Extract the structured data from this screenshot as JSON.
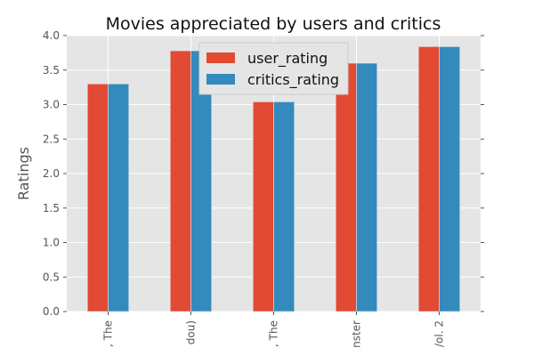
{
  "chart_data": {
    "type": "bar",
    "title": "Movies appreciated by users and critics",
    "xlabel": "",
    "ylabel": "Ratings",
    "categories": [
      ", The",
      "dou)",
      ", The",
      "nster",
      "/ol. 2"
    ],
    "series": [
      {
        "name": "user_rating",
        "color": "#e24a33",
        "values": [
          3.3,
          3.78,
          3.04,
          3.6,
          3.84
        ]
      },
      {
        "name": "critics_rating",
        "color": "#348abd",
        "values": [
          3.3,
          3.78,
          3.04,
          3.6,
          3.84
        ]
      }
    ],
    "ylim": [
      0,
      4.0
    ],
    "yticks": [
      "0.0",
      "0.5",
      "1.0",
      "1.5",
      "2.0",
      "2.5",
      "3.0",
      "3.5",
      "4.0"
    ],
    "grid": true,
    "legend_position": "top-center",
    "plot_background": "#e5e5e5"
  }
}
